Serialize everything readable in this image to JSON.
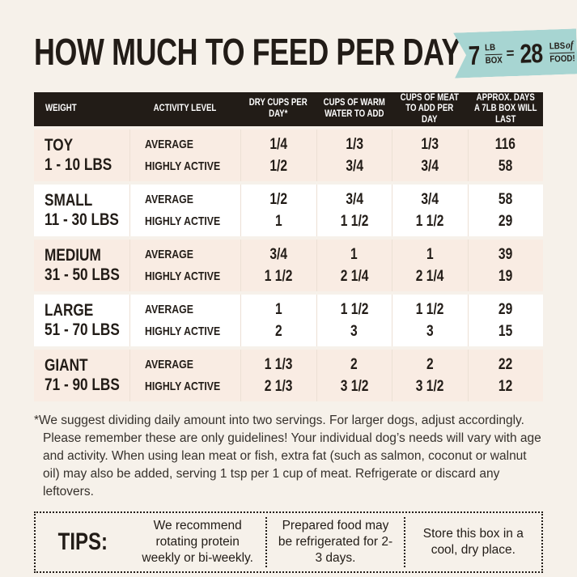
{
  "title": "HOW MUCH TO FEED PER DAY",
  "badge": {
    "amount1": "7",
    "unit1_top": "LB",
    "unit1_bottom": "BOX",
    "equals": "=",
    "amount2": "28",
    "unit2_top": "LBS",
    "unit2_of": "of",
    "unit2_bottom": "FOOD!"
  },
  "colors": {
    "background": "#f6f1ea",
    "header_bar": "#221c17",
    "row_pink": "#f9ece3",
    "row_white": "#ffffff",
    "badge_teal": "#a7d5d2",
    "text": "#221c17"
  },
  "table": {
    "headers": [
      "WEIGHT",
      "ACTIVITY LEVEL",
      "DRY CUPS PER DAY*",
      "CUPS OF WARM WATER TO ADD",
      "CUPS OF MEAT TO ADD PER DAY",
      "APPROX. DAYS A 7LB BOX WILL LAST"
    ],
    "activity_labels": [
      "AVERAGE",
      "HIGHLY ACTIVE"
    ],
    "rows": [
      {
        "size": "TOY",
        "range": "1 - 10 LBS",
        "average": [
          "1/4",
          "1/3",
          "1/3",
          "116"
        ],
        "highly_active": [
          "1/2",
          "3/4",
          "3/4",
          "58"
        ]
      },
      {
        "size": "SMALL",
        "range": "11 - 30 LBS",
        "average": [
          "1/2",
          "3/4",
          "3/4",
          "58"
        ],
        "highly_active": [
          "1",
          "1 1/2",
          "1 1/2",
          "29"
        ]
      },
      {
        "size": "MEDIUM",
        "range": "31 - 50 LBS",
        "average": [
          "3/4",
          "1",
          "1",
          "39"
        ],
        "highly_active": [
          "1 1/2",
          "2 1/4",
          "2 1/4",
          "19"
        ]
      },
      {
        "size": "LARGE",
        "range": "51 - 70 LBS",
        "average": [
          "1",
          "1 1/2",
          "1 1/2",
          "29"
        ],
        "highly_active": [
          "2",
          "3",
          "3",
          "15"
        ]
      },
      {
        "size": "GIANT",
        "range": "71 - 90 LBS",
        "average": [
          "1 1/3",
          "2",
          "2",
          "22"
        ],
        "highly_active": [
          "2 1/3",
          "3 1/2",
          "3 1/2",
          "12"
        ]
      }
    ]
  },
  "footnote": "*We suggest dividing daily amount into two servings. For larger dogs, adjust accordingly. Please remember these are only guidelines! Your individual dog’s needs will vary with age and activity. When using lean meat or fish, extra fat (such as salmon, coconut or walnut oil) may also be added, serving 1 tsp per 1 cup of meat. Refrigerate or discard any leftovers.",
  "tips": {
    "label": "TIPS:",
    "items": [
      "We recommend rotating protein weekly or bi-weekly.",
      "Prepared food may be refrigerated for 2-3 days.",
      "Store this box in a cool, dry place."
    ]
  }
}
